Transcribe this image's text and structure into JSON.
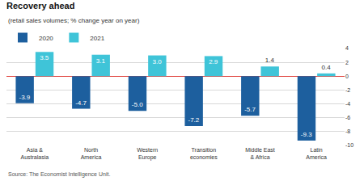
{
  "chart_data": {
    "type": "bar",
    "title": "Recovery ahead",
    "subtitle": "(retail sales volumes; % change year on year)",
    "categories": [
      "Asia & Australasia",
      "North America",
      "Western Europe",
      "Transition economies",
      "Middle East & Africa",
      "Latin America"
    ],
    "series": [
      {
        "name": "2020",
        "color": "#1d5f9e",
        "values": [
          -3.9,
          -4.7,
          -5.0,
          -7.2,
          -5.7,
          -9.3
        ],
        "value_labels": [
          "-3.9",
          "-4.7",
          "-5.0",
          "-7.2",
          "-5.7",
          "-9.3"
        ]
      },
      {
        "name": "2021",
        "color": "#3fc4d8",
        "values": [
          3.5,
          3.1,
          3.0,
          2.9,
          1.4,
          0.4
        ],
        "value_labels": [
          "3.5",
          "3.1",
          "3.0",
          "2.9",
          "1.4",
          "0.4"
        ]
      }
    ],
    "ylim": [
      -10,
      4
    ],
    "yticks": [
      4,
      2,
      0,
      -2,
      -4,
      -6,
      -8,
      -10
    ],
    "grid": true,
    "legend": "top left",
    "data_labels": true,
    "annotations": [
      "Source: The Economist Intelligence Unit."
    ]
  }
}
